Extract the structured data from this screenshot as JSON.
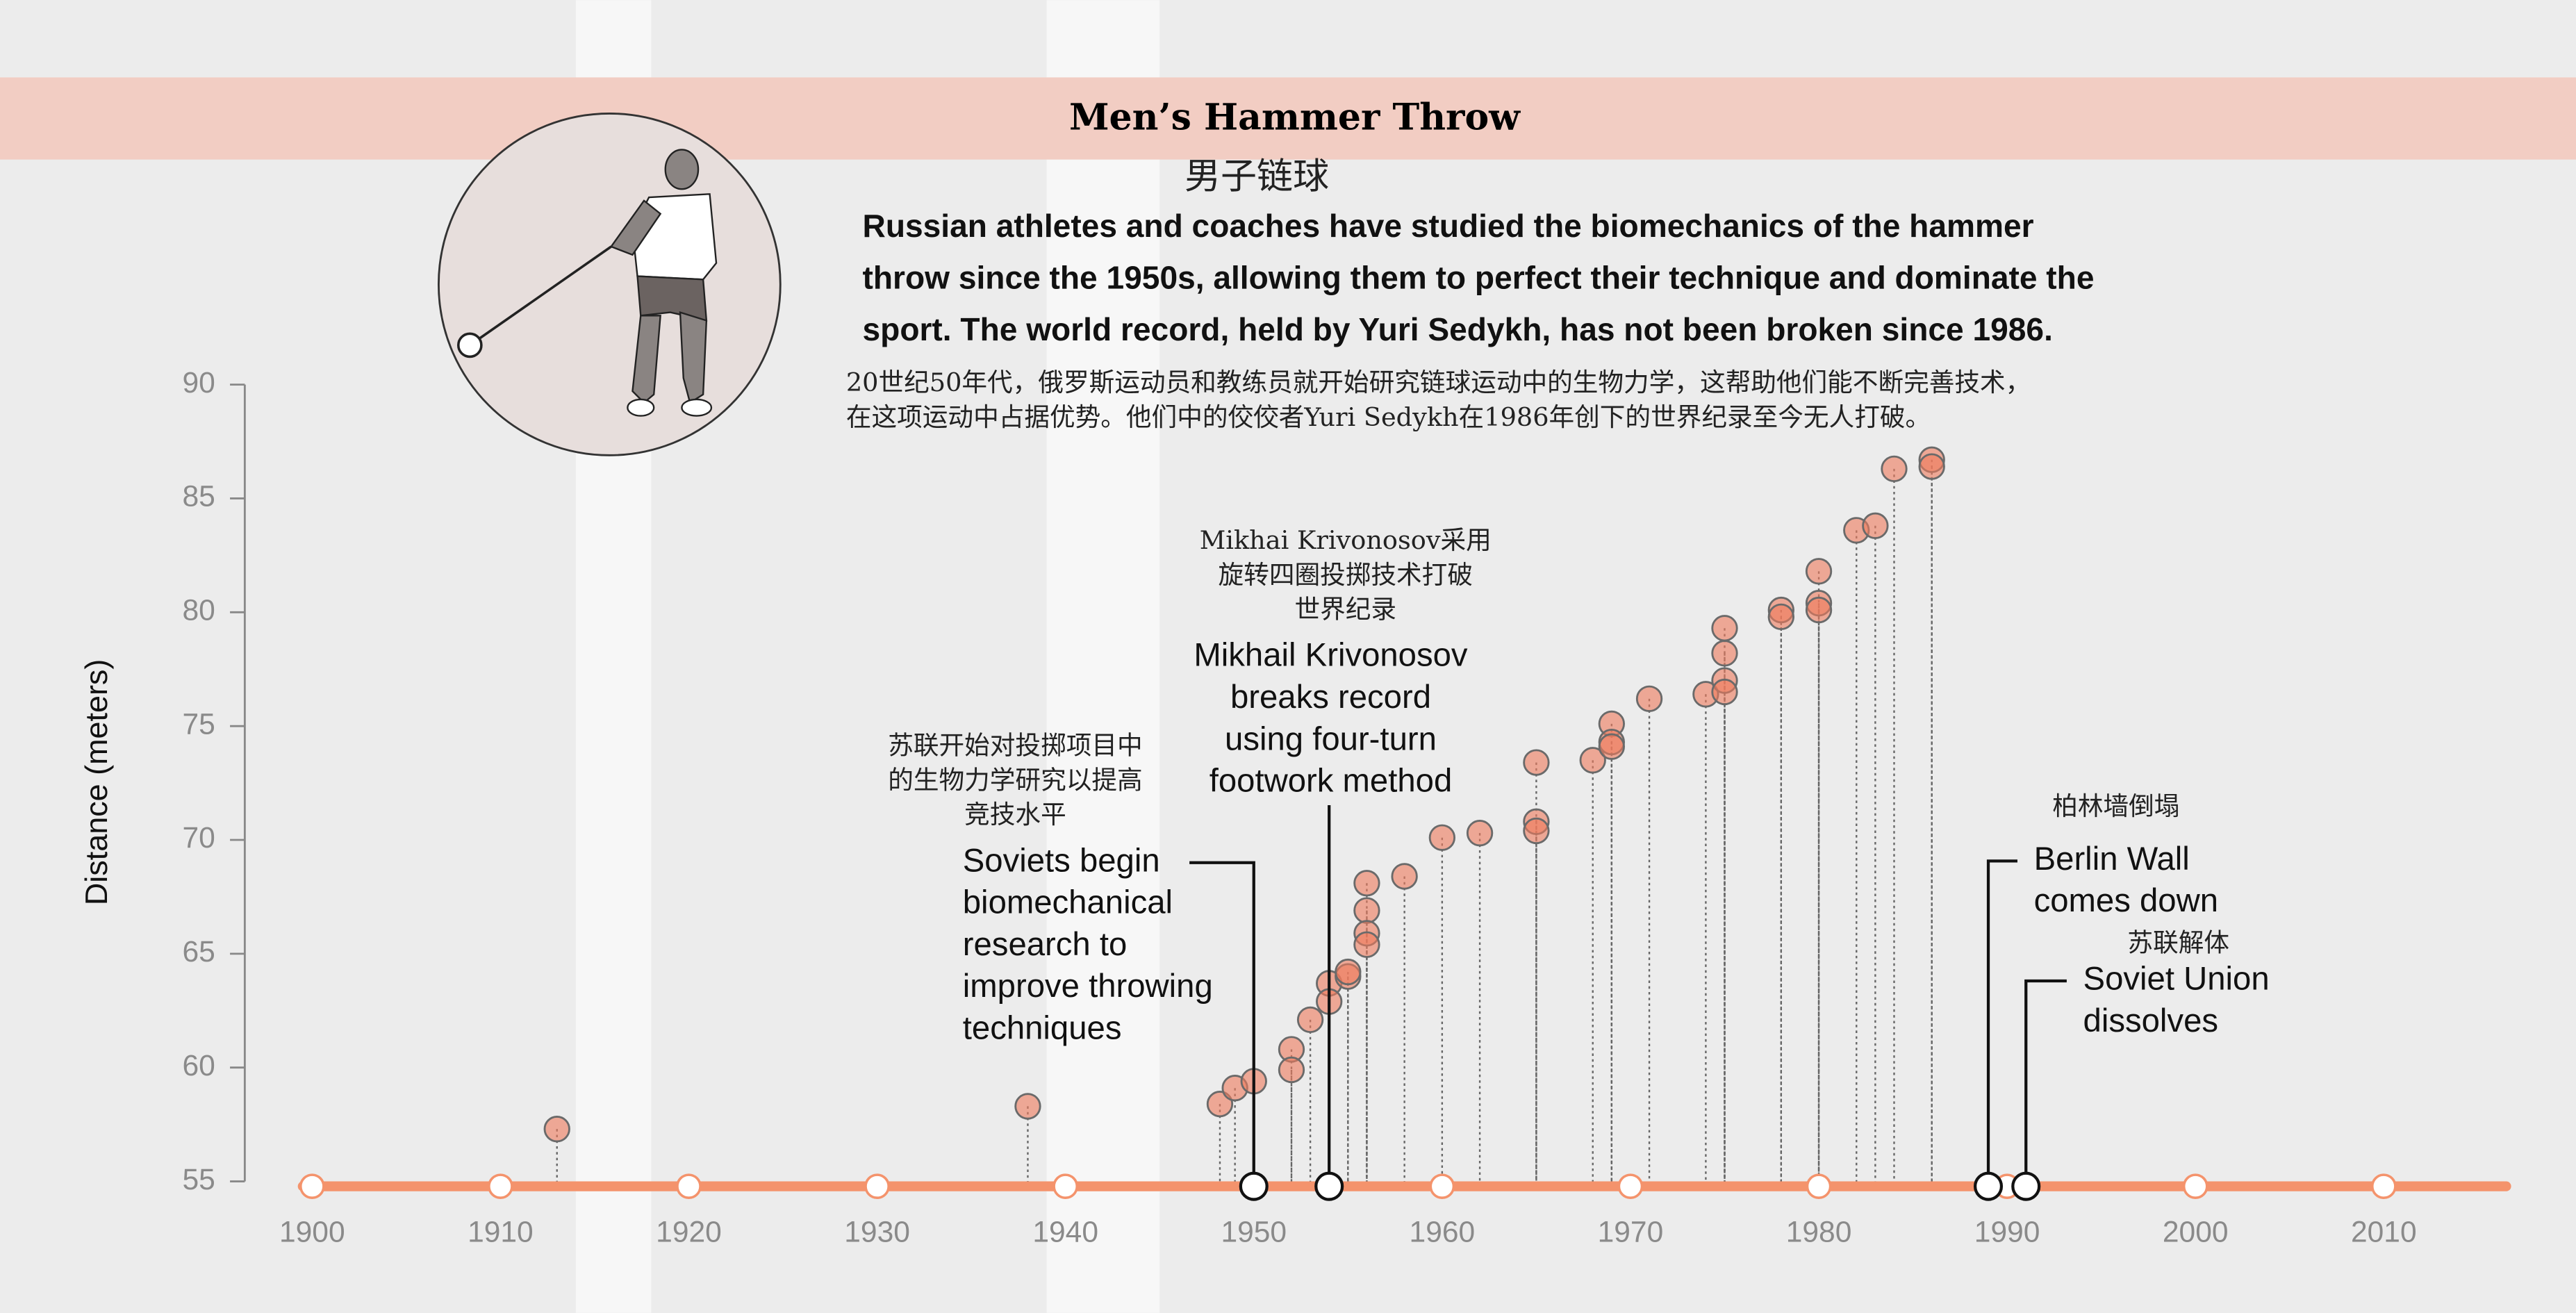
{
  "chart_data": {
    "type": "scatter",
    "title": "Men’s Hammer Throw",
    "title_zh": "男子链球",
    "description": [
      "Russian athletes and coaches have studied the biomechanics of the hammer",
      "throw since the 1950s, allowing them to perfect their technique and dominate the",
      "sport. The world record, held by Yuri Sedykh, has not been broken since 1986."
    ],
    "description_zh": [
      "20世纪50年代，俄罗斯运动员和教练员就开始研究链球运动中的生物力学，这帮助他们能不断完善技术，",
      "在这项运动中占据优势。他们中的佼佼者Yuri Sedykh在1986年创下的世界纪录至今无人打破。"
    ],
    "ylabel": "Distance (meters)",
    "color": "#ef7a5c",
    "axis_color": "#f4936c",
    "xlim": [
      1899.5,
      2016.5
    ],
    "ylim": [
      55,
      90
    ],
    "xticks": [
      1900,
      1910,
      1920,
      1930,
      1940,
      1950,
      1960,
      1970,
      1980,
      1990,
      2000,
      2010
    ],
    "yticks": [
      55,
      60,
      65,
      70,
      75,
      80,
      85,
      90
    ],
    "shaded_periods": [
      [
        1914,
        1918
      ],
      [
        1939,
        1945
      ]
    ],
    "x": [
      1913,
      1938,
      1948.2,
      1949,
      1950,
      1952,
      1952,
      1953,
      1954,
      1954,
      1955,
      1955,
      1956,
      1956,
      1956,
      1956,
      1958,
      1960,
      1962,
      1965,
      1965,
      1965,
      1968,
      1969,
      1969,
      1969,
      1971,
      1974,
      1975,
      1975,
      1975,
      1975,
      1978,
      1978,
      1980,
      1980,
      1980,
      1982,
      1983,
      1984,
      1986,
      1986
    ],
    "values": [
      57.3,
      58.3,
      58.4,
      59.1,
      59.4,
      60.8,
      59.9,
      62.1,
      63.7,
      62.9,
      64.0,
      64.2,
      68.1,
      66.9,
      65.9,
      65.4,
      68.4,
      70.1,
      70.3,
      73.4,
      70.8,
      70.4,
      73.5,
      75.1,
      74.3,
      74.1,
      76.2,
      76.4,
      79.3,
      78.2,
      77.0,
      76.5,
      80.1,
      79.8,
      81.8,
      80.4,
      80.1,
      83.6,
      83.8,
      86.3,
      86.7,
      86.4
    ],
    "events": [
      {
        "year": 1950,
        "label": [
          "Soviets begin",
          "biomechanical",
          "research to",
          "improve throwing",
          "techniques"
        ],
        "label_zh": [
          "苏联开始对投掷项目中",
          "的生物力学研究以提高",
          "竞技水平"
        ]
      },
      {
        "year": 1954,
        "label": [
          "Mikhail Krivonosov",
          "breaks record",
          "using four-turn",
          "footwork method"
        ],
        "label_zh": [
          "Mikhai Krivonosov采用",
          "旋转四圈投掷技术打破",
          "世界纪录"
        ]
      },
      {
        "year": 1989,
        "label": [
          "Berlin Wall",
          "comes down"
        ],
        "label_zh": [
          "柏林墙倒塌"
        ]
      },
      {
        "year": 1991,
        "label": [
          "Soviet Union",
          "dissolves"
        ],
        "label_zh": [
          "苏联解体"
        ]
      }
    ]
  }
}
